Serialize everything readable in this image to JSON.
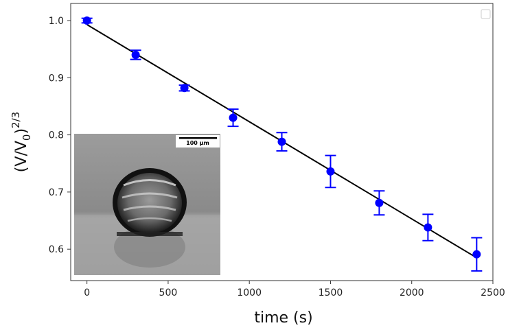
{
  "chart_data": {
    "type": "scatter",
    "title": "",
    "xlabel": "time (s)",
    "ylabel_main": "(V/V",
    "ylabel_sub": "0",
    "ylabel_close": ")",
    "ylabel_sup": "2/3",
    "xlim": [
      -100,
      2500
    ],
    "ylim": [
      0.545,
      1.03
    ],
    "xticks": [
      0,
      500,
      1000,
      1500,
      2000,
      2500
    ],
    "yticks": [
      0.6,
      0.7,
      0.8,
      0.9,
      1.0
    ],
    "grid": false,
    "legend": "top-right, empty",
    "series": [
      {
        "kind": "points-with-error-bars",
        "color": "#0000ff",
        "x": [
          0,
          300,
          600,
          900,
          1200,
          1500,
          1800,
          2100,
          2400
        ],
        "y": [
          1.0,
          0.94,
          0.882,
          0.83,
          0.788,
          0.736,
          0.681,
          0.638,
          0.591
        ],
        "yerr": [
          0.004,
          0.008,
          0.005,
          0.015,
          0.016,
          0.028,
          0.021,
          0.023,
          0.029
        ]
      },
      {
        "kind": "fit-line",
        "color": "#000000",
        "x": [
          0,
          2400
        ],
        "y": [
          0.993,
          0.585
        ]
      }
    ]
  },
  "inset": {
    "scale_bar_label": "100 μm"
  }
}
